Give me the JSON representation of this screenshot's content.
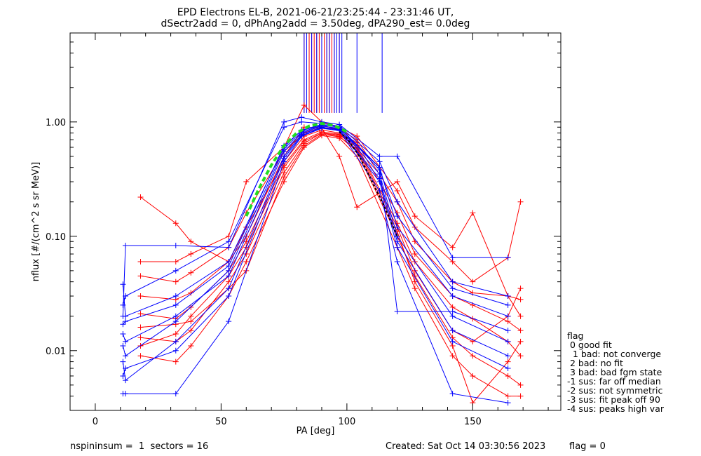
{
  "chart_data": {
    "type": "line",
    "title": "EPD Electrons EL-B, 2021-06-21/23:25:44 - 23:31:46 UT,",
    "subtitle": "dSectr2add = 0, dPhAng2add = 3.50deg, dPA290_est=    0.0deg",
    "xlabel": "PA [deg]",
    "ylabel": "nflux [#/(cm^2 s sr MeV)]",
    "xlim": [
      -10,
      185
    ],
    "ylim": [
      0.003,
      6.0
    ],
    "yscale": "log",
    "x_ticks": [
      0,
      50,
      100,
      150
    ],
    "x_tick_labels": [
      "0",
      "50",
      "100",
      "150"
    ],
    "y_ticks": [
      0.01,
      0.1,
      1.0
    ],
    "y_tick_labels": [
      "0.01",
      "0.10",
      "1.00"
    ],
    "grid": false,
    "colors": {
      "red": "#ff0000",
      "blue": "#0000ff",
      "fit": "#22dd22",
      "model": "#000000"
    },
    "red_pa": [
      18,
      32,
      38,
      53,
      60,
      75,
      83,
      90,
      97,
      104,
      120,
      127,
      142,
      150,
      164,
      169
    ],
    "blue_pa": [
      11,
      12,
      32,
      53,
      75,
      82,
      90,
      97,
      113,
      120,
      142,
      164
    ],
    "series": [
      {
        "color": "red",
        "x": [
          18,
          32,
          38,
          53,
          60,
          75,
          83,
          90,
          97,
          104,
          120,
          127,
          142,
          150,
          164,
          169
        ],
        "y": [
          0.021,
          0.019,
          0.024,
          0.05,
          0.09,
          0.42,
          0.7,
          0.82,
          0.78,
          0.62,
          0.13,
          0.06,
          0.024,
          0.019,
          0.012,
          0.009
        ]
      },
      {
        "color": "red",
        "x": [
          18,
          32,
          38,
          53,
          60,
          75,
          83,
          90,
          97,
          104,
          120,
          127,
          142,
          150,
          164,
          169
        ],
        "y": [
          0.013,
          0.012,
          0.015,
          0.04,
          0.07,
          0.36,
          0.65,
          0.8,
          0.75,
          0.55,
          0.1,
          0.045,
          0.013,
          0.009,
          0.006,
          0.005
        ]
      },
      {
        "color": "red",
        "x": [
          18,
          32,
          38,
          53,
          60,
          75,
          83,
          90,
          97,
          104,
          120,
          127,
          142,
          150,
          164,
          169
        ],
        "y": [
          0.045,
          0.04,
          0.048,
          0.08,
          0.16,
          0.55,
          0.8,
          0.9,
          0.86,
          0.7,
          0.2,
          0.09,
          0.04,
          0.032,
          0.03,
          0.028
        ]
      },
      {
        "color": "red",
        "x": [
          18,
          32,
          38,
          53,
          60,
          75,
          83,
          90,
          97,
          104,
          120,
          127,
          142,
          150,
          164,
          169
        ],
        "y": [
          0.009,
          0.008,
          0.011,
          0.03,
          0.06,
          0.3,
          0.6,
          0.76,
          0.72,
          0.5,
          0.08,
          0.035,
          0.009,
          0.006,
          0.004,
          0.004
        ]
      },
      {
        "color": "red",
        "x": [
          18,
          32,
          38,
          53,
          60,
          75,
          83,
          90,
          97,
          104,
          120,
          127,
          142,
          150,
          164,
          169
        ],
        "y": [
          0.22,
          0.13,
          0.09,
          0.06,
          0.1,
          0.5,
          0.9,
          0.88,
          0.5,
          0.18,
          0.3,
          0.15,
          0.08,
          0.16,
          0.03,
          0.02
        ]
      },
      {
        "color": "red",
        "x": [
          18,
          32,
          38,
          53,
          60,
          75,
          83,
          90,
          97,
          104,
          120,
          127,
          142,
          150,
          164,
          169
        ],
        "y": [
          0.03,
          0.028,
          0.032,
          0.06,
          0.12,
          0.45,
          0.75,
          0.85,
          0.8,
          0.66,
          0.16,
          0.07,
          0.03,
          0.025,
          0.018,
          0.015
        ]
      },
      {
        "color": "red",
        "x": [
          18,
          32,
          38,
          53,
          60,
          75,
          83,
          90,
          97,
          104,
          120,
          127,
          142,
          150,
          164,
          169
        ],
        "y": [
          0.011,
          0.014,
          0.02,
          0.045,
          0.08,
          0.4,
          0.68,
          0.8,
          0.77,
          0.6,
          0.12,
          0.05,
          0.015,
          0.012,
          0.02,
          0.035
        ]
      },
      {
        "color": "red",
        "x": [
          18,
          32,
          38,
          53,
          60,
          75,
          83,
          90,
          97,
          104,
          120,
          127,
          142,
          150,
          164,
          169
        ],
        "y": [
          0.06,
          0.06,
          0.07,
          0.1,
          0.3,
          0.6,
          1.4,
          1.0,
          0.9,
          0.75,
          0.25,
          0.12,
          0.06,
          0.04,
          0.065,
          0.2
        ]
      },
      {
        "color": "red",
        "x": [
          18,
          32,
          38,
          53,
          60,
          75,
          83,
          90,
          97,
          104,
          120,
          127,
          142,
          150,
          164,
          169
        ],
        "y": [
          0.016,
          0.017,
          0.018,
          0.035,
          0.05,
          0.33,
          0.62,
          0.78,
          0.74,
          0.58,
          0.11,
          0.04,
          0.011,
          0.0035,
          0.008,
          0.012
        ]
      },
      {
        "color": "blue",
        "x": [
          11,
          12,
          32,
          53,
          75,
          82,
          90,
          97,
          113,
          120,
          142,
          164
        ],
        "y": [
          0.038,
          0.02,
          0.03,
          0.06,
          0.6,
          0.85,
          0.95,
          0.9,
          0.4,
          0.12,
          0.03,
          0.02
        ]
      },
      {
        "color": "blue",
        "x": [
          11,
          12,
          32,
          53,
          75,
          82,
          90,
          97,
          113,
          120,
          142,
          164
        ],
        "y": [
          0.014,
          0.012,
          0.02,
          0.045,
          0.55,
          0.8,
          0.92,
          0.88,
          0.35,
          0.1,
          0.02,
          0.012
        ]
      },
      {
        "color": "blue",
        "x": [
          11,
          12,
          32,
          53,
          75,
          82,
          90,
          97,
          113,
          120,
          142,
          164
        ],
        "y": [
          0.008,
          0.0055,
          0.012,
          0.035,
          0.5,
          0.78,
          0.9,
          0.85,
          0.3,
          0.08,
          0.012,
          0.007
        ]
      },
      {
        "color": "blue",
        "x": [
          11,
          12,
          32,
          53,
          75,
          82,
          90,
          97,
          113,
          120,
          142,
          164
        ],
        "y": [
          0.0042,
          0.0042,
          0.0042,
          0.018,
          0.45,
          0.75,
          0.88,
          0.84,
          0.25,
          0.06,
          0.0042,
          0.0035
        ]
      },
      {
        "color": "blue",
        "x": [
          11,
          12,
          32,
          53,
          75,
          82,
          90,
          97,
          113,
          120,
          142,
          164
        ],
        "y": [
          0.02,
          0.083,
          0.083,
          0.08,
          1.0,
          1.1,
          1.0,
          0.95,
          0.5,
          0.5,
          0.065,
          0.065
        ]
      },
      {
        "color": "blue",
        "x": [
          11,
          12,
          32,
          53,
          75,
          82,
          90,
          97,
          113,
          120,
          142,
          164
        ],
        "y": [
          0.025,
          0.03,
          0.05,
          0.09,
          0.9,
          1.0,
          0.97,
          0.92,
          0.45,
          0.2,
          0.04,
          0.03
        ]
      },
      {
        "color": "blue",
        "x": [
          11,
          12,
          32,
          53,
          75,
          82,
          90,
          97,
          113,
          120,
          142,
          164
        ],
        "y": [
          0.011,
          0.009,
          0.018,
          0.05,
          0.58,
          0.82,
          0.93,
          0.86,
          0.4,
          0.022,
          0.022,
          0.015
        ]
      },
      {
        "color": "blue",
        "x": [
          11,
          12,
          32,
          53,
          75,
          82,
          90,
          97,
          113,
          120,
          142,
          164
        ],
        "y": [
          0.017,
          0.018,
          0.025,
          0.055,
          0.62,
          0.84,
          0.94,
          0.9,
          0.38,
          0.15,
          0.035,
          0.025
        ]
      },
      {
        "color": "blue",
        "x": [
          11,
          12,
          32,
          53,
          75,
          82,
          90,
          97,
          113,
          120,
          142,
          164
        ],
        "y": [
          0.006,
          0.007,
          0.01,
          0.03,
          0.48,
          0.76,
          0.89,
          0.85,
          0.32,
          0.09,
          0.015,
          0.009
        ]
      }
    ],
    "fit_curve": {
      "x": [
        60,
        65,
        70,
        75,
        80,
        85,
        90,
        95,
        100
      ],
      "y": [
        0.15,
        0.26,
        0.42,
        0.62,
        0.8,
        0.92,
        0.97,
        0.93,
        0.82
      ]
    },
    "model_curve": {
      "x": [
        97,
        100,
        105,
        110,
        115,
        120
      ],
      "y": [
        0.82,
        0.72,
        0.5,
        0.3,
        0.18,
        0.1
      ]
    },
    "spikes": {
      "red_x": [
        83,
        85,
        86,
        87,
        88,
        89,
        90,
        91,
        92,
        93,
        94,
        95,
        97
      ],
      "blue_x": [
        83,
        84,
        86,
        88,
        90,
        92,
        93,
        95,
        96,
        97,
        98,
        104,
        114
      ],
      "top_y": 6.0,
      "bottom_y": 1.2
    }
  },
  "legend": {
    "title": "flag",
    "items": [
      " 0 good fit",
      "  1 bad: not converge",
      " 2 bad: no fit",
      " 3 bad: bad fgm state",
      "-1 sus: far off median",
      "-2 sus: not symmetric",
      "-3 sus: fit peak off 90",
      "-4 sus: peaks high var"
    ]
  },
  "footer": {
    "left": "nspininsum =  1  sectors = 16",
    "created": "Created: Sat Oct 14 03:30:56 2023",
    "flag": "flag = 0"
  }
}
